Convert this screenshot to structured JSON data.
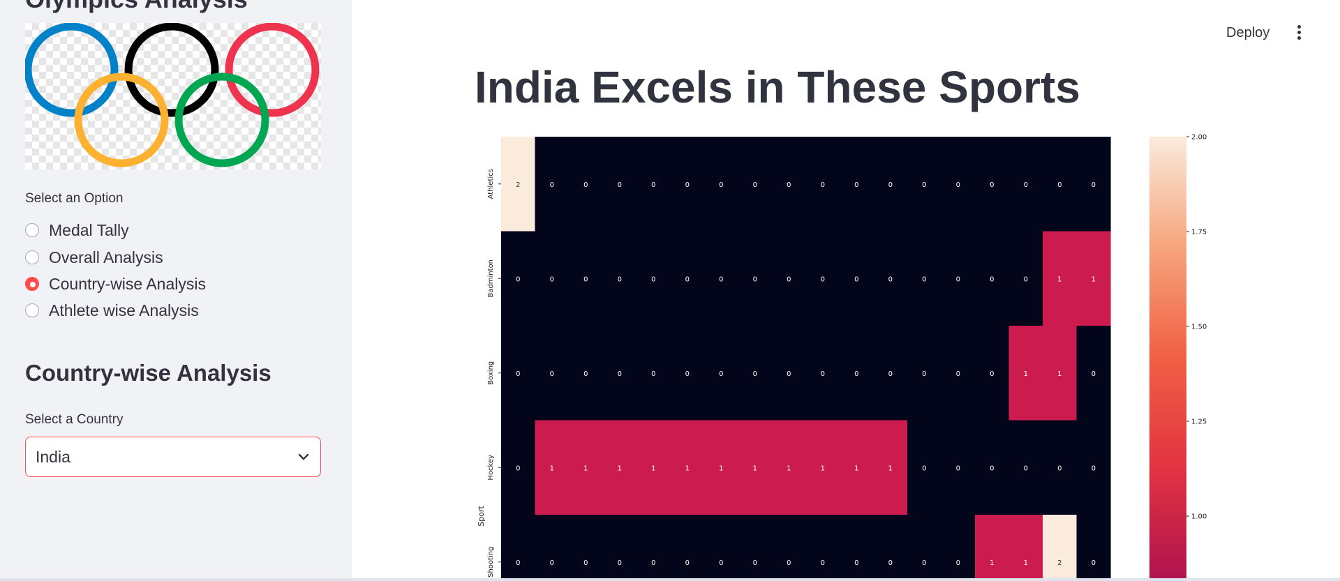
{
  "sidebar": {
    "title": "Olympics Analysis",
    "select_option_label": "Select an Option",
    "options": [
      {
        "label": "Medal Tally",
        "selected": false
      },
      {
        "label": "Overall Analysis",
        "selected": false
      },
      {
        "label": "Country-wise Analysis",
        "selected": true
      },
      {
        "label": "Athlete wise Analysis",
        "selected": false
      }
    ],
    "section_heading": "Country-wise Analysis",
    "country_label": "Select a Country",
    "country_value": "India",
    "logo_ring_colors": [
      "#0081c8",
      "#fcb131",
      "#000000",
      "#00a651",
      "#ee334e"
    ]
  },
  "header": {
    "deploy_label": "Deploy",
    "menu_icon": "more-vertical-icon"
  },
  "main": {
    "title": "India Excels in These Sports"
  },
  "colors": {
    "accent": "#ff4b4b",
    "text": "#31333f",
    "sidebar_bg": "#f0f2f6"
  },
  "chart_data": {
    "type": "heatmap",
    "ylabel": "Sport",
    "y_categories": [
      "Athletics",
      "Badminton",
      "Boxing",
      "Hockey",
      "Shooting"
    ],
    "columns": 18,
    "values": [
      [
        2,
        0,
        0,
        0,
        0,
        0,
        0,
        0,
        0,
        0,
        0,
        0,
        0,
        0,
        0,
        0,
        0,
        0
      ],
      [
        0,
        0,
        0,
        0,
        0,
        0,
        0,
        0,
        0,
        0,
        0,
        0,
        0,
        0,
        0,
        0,
        1,
        1
      ],
      [
        0,
        0,
        0,
        0,
        0,
        0,
        0,
        0,
        0,
        0,
        0,
        0,
        0,
        0,
        0,
        1,
        1,
        0
      ],
      [
        0,
        1,
        1,
        1,
        1,
        1,
        1,
        1,
        1,
        1,
        1,
        1,
        0,
        0,
        0,
        0,
        0,
        0
      ],
      [
        0,
        0,
        0,
        0,
        0,
        0,
        0,
        0,
        0,
        0,
        0,
        0,
        0,
        0,
        1,
        1,
        2,
        0
      ]
    ],
    "colorbar_ticks": [
      "2.00",
      "1.75",
      "1.50",
      "1.25",
      "1.00"
    ],
    "colorbar_range": [
      0,
      2
    ],
    "colormap": "rocket",
    "cell_colors": {
      "0": "#03051a",
      "1": "#cb1b4f",
      "2": "#faebdd"
    }
  }
}
